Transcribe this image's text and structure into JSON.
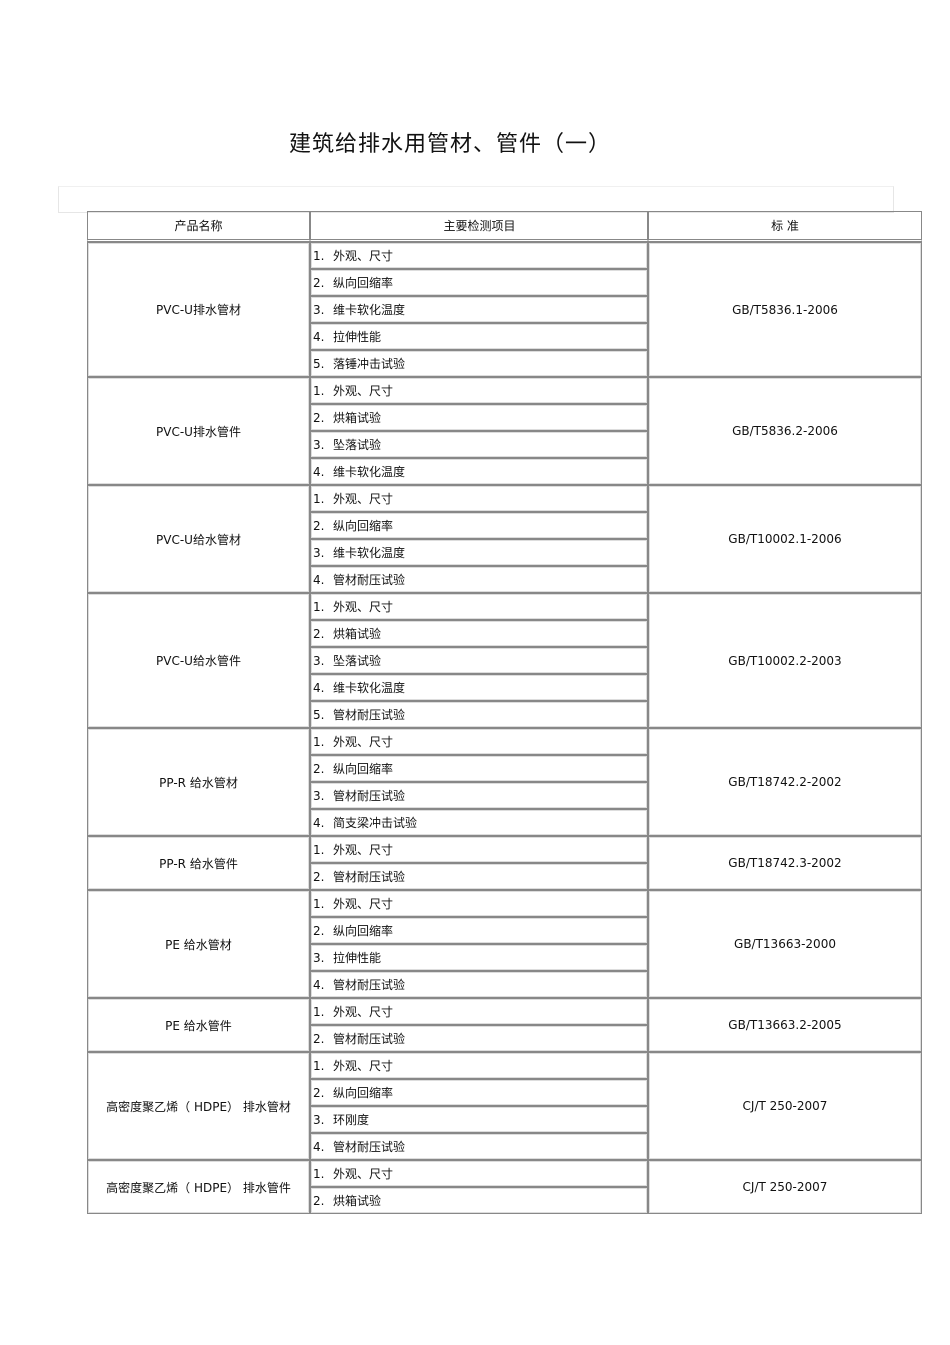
{
  "title": "建筑给排水用管材、管件（一）",
  "headers": [
    "产品名称",
    "主要检测项目",
    "标  准"
  ],
  "groups": [
    {
      "product": "PVC-U排水管材",
      "standard": "GB/T5836.1-2006",
      "items": [
        "外观、尺寸",
        "纵向回缩率",
        "维卡软化温度",
        "拉伸性能",
        "落锤冲击试验"
      ]
    },
    {
      "product": "PVC-U排水管件",
      "standard": "GB/T5836.2-2006",
      "items": [
        "外观、尺寸",
        "烘箱试验",
        "坠落试验",
        "维卡软化温度"
      ]
    },
    {
      "product": "PVC-U给水管材",
      "standard": "GB/T10002.1-2006",
      "items": [
        "外观、尺寸",
        "纵向回缩率",
        "维卡软化温度",
        "管材耐压试验"
      ]
    },
    {
      "product": "PVC-U给水管件",
      "standard": "GB/T10002.2-2003",
      "items": [
        "外观、尺寸",
        "烘箱试验",
        "坠落试验",
        "维卡软化温度",
        "管材耐压试验"
      ]
    },
    {
      "product": "PP-R 给水管材",
      "standard": "GB/T18742.2-2002",
      "items": [
        "外观、尺寸",
        "纵向回缩率",
        "管材耐压试验",
        "简支梁冲击试验"
      ]
    },
    {
      "product": "PP-R 给水管件",
      "standard": "GB/T18742.3-2002",
      "items": [
        "外观、尺寸",
        "管材耐压试验"
      ]
    },
    {
      "product": "PE 给水管材",
      "standard": "GB/T13663-2000",
      "items": [
        "外观、尺寸",
        "纵向回缩率",
        "拉伸性能",
        "管材耐压试验"
      ]
    },
    {
      "product": "PE 给水管件",
      "standard": "GB/T13663.2-2005",
      "items": [
        "外观、尺寸",
        "管材耐压试验"
      ]
    },
    {
      "product": "高密度聚乙烯（ HDPE） 排水管材",
      "standard": "CJ/T 250-2007",
      "items": [
        "外观、尺寸",
        "纵向回缩率",
        "环刚度",
        "管材耐压试验"
      ]
    },
    {
      "product": "高密度聚乙烯（ HDPE） 排水管件",
      "standard": "CJ/T 250-2007",
      "items": [
        "外观、尺寸",
        "烘箱试验"
      ]
    }
  ]
}
